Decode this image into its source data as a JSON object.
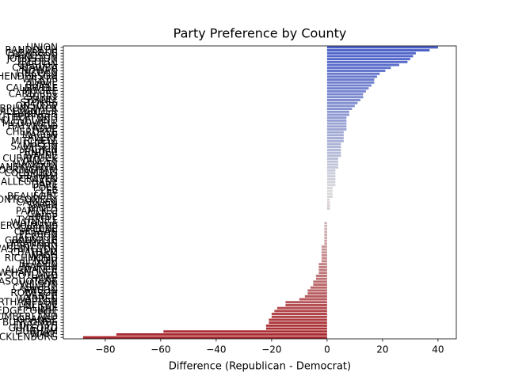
{
  "chart_data": {
    "type": "barh",
    "title": "Party Preference by County",
    "x_label": "Difference (Republican - Democrat)",
    "categories": [
      "UNION",
      "RANDOLPH",
      "CABARRUS",
      "DAVIDSON",
      "JOHNSTON",
      "IREDELL",
      "GASTON",
      "CATAWBA",
      "ROWAN",
      "LINCOLN",
      "HENDERSON",
      "WILKES",
      "DAVIE",
      "BURKE",
      "CALDWELL",
      "MOORE",
      "CARTERET",
      "SURRY",
      "STANLY",
      "STOKES",
      "ONSLOW",
      "BRUNSWICK",
      "ALEXANDER",
      "HARNETT",
      "RUTHERFORD",
      "CLEVELAND",
      "MCDOWELL",
      "HAYWOOD",
      "ASHE",
      "CHEROKEE",
      "MACON",
      "AVERY",
      "MITCHELL",
      "DUPLIN",
      "SAMPSON",
      "YADKIN",
      "PENDER",
      "WAYNE",
      "CURRITUCK",
      "YANCEY",
      "MADISON",
      "TRANSYLVANIA",
      "ROCKINGHAM",
      "COLUMBUS",
      "GRAHAM",
      "CRAVEN",
      "ALLEGHANY",
      "DARE",
      "POLK",
      "LEE",
      "CLAY",
      "BEAUFORT",
      "MONTGOMERY",
      "CAMDEN",
      "SWAIN",
      "JONES",
      "PAMLICO",
      "GATES",
      "HYDE",
      "TYRRELL",
      "WATAUGA",
      "PERQUIMANS",
      "GREENE",
      "CHOWAN",
      "PERSON",
      "JACKSON",
      "GRANVILLE",
      "FRANKLIN",
      "HERTFORD",
      "WASHINGTON",
      "CHATHAM",
      "NASH",
      "RICHMOND",
      "LENOIR",
      "BLADEN",
      "MARTIN",
      "ALAMANCE",
      "NEW HANOVER",
      "SCOTLAND",
      "HOKE",
      "PASQUOTANK",
      "WILSON",
      "CASWELL",
      "ANSON",
      "ROBESON",
      "VANCE",
      "WARREN",
      "NORTHAMPTON",
      "BERTIE",
      "HALIFAX",
      "EDGECOMBE",
      "PITT",
      "CUMBERLAND",
      "ORANGE",
      "BUNCOMBE",
      "FORSYTH",
      "GUILFORD",
      "DURHAM",
      "WAKE",
      "MECKLENBURG"
    ],
    "values": [
      40,
      37,
      32,
      31,
      30,
      29,
      26,
      23,
      21,
      19,
      18,
      17,
      17,
      16,
      15,
      14,
      13,
      13,
      12,
      11,
      10,
      9,
      8,
      8,
      7,
      7,
      7,
      7,
      7,
      6,
      6,
      6,
      6,
      5,
      5,
      5,
      5,
      5,
      4,
      4,
      4,
      4,
      3,
      3,
      3,
      3,
      3,
      3,
      2,
      2,
      2,
      2,
      1,
      1,
      1,
      1,
      0,
      0,
      0,
      0,
      -1,
      -1,
      -1,
      -1,
      -1,
      -1,
      -1,
      -1,
      -2,
      -2,
      -2,
      -2,
      -2,
      -2,
      -3,
      -3,
      -3,
      -3,
      -4,
      -4,
      -5,
      -5,
      -6,
      -7,
      -7,
      -8,
      -10,
      -15,
      -15,
      -18,
      -19,
      -20,
      -20,
      -21,
      -21,
      -22,
      -22,
      -59,
      -76,
      -88
    ],
    "palette": [
      "#4a5fc9",
      "#dcdcdc",
      "#a8262c"
    ],
    "xlim": [
      -95.1,
      46.6
    ],
    "xticks": [
      {
        "value": -80,
        "label": "−80"
      },
      {
        "value": -60,
        "label": "−60"
      },
      {
        "value": -40,
        "label": "−40"
      },
      {
        "value": -20,
        "label": "−20"
      },
      0,
      20,
      40
    ]
  }
}
